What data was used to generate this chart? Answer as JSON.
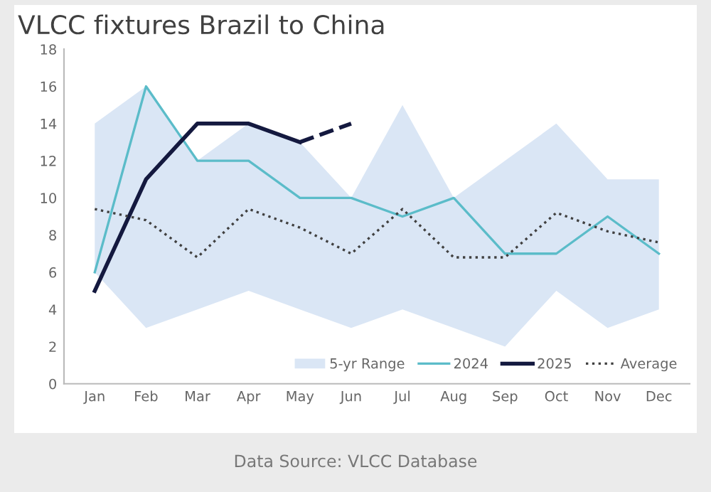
{
  "chart_data": {
    "type": "line",
    "title": "VLCC fixtures Brazil to China",
    "categories": [
      "Jan",
      "Feb",
      "Mar",
      "Apr",
      "May",
      "Jun",
      "Jul",
      "Aug",
      "Sep",
      "Oct",
      "Nov",
      "Dec"
    ],
    "series": [
      {
        "name": "5-yr Range",
        "color": "#dae6f5",
        "values": [
          null,
          null,
          null,
          null,
          null,
          null,
          null,
          null,
          null,
          null,
          null,
          null
        ],
        "lower": [
          6,
          3,
          4,
          5,
          4,
          3,
          4,
          3,
          2,
          5,
          3,
          4
        ],
        "upper": [
          14,
          16,
          12,
          14,
          13,
          10,
          15,
          10,
          12,
          14,
          11,
          11
        ]
      },
      {
        "name": "2024",
        "color": "#5bbcc9",
        "values": [
          6,
          16,
          12,
          12,
          10,
          10,
          9,
          10,
          7,
          7,
          9,
          7
        ]
      },
      {
        "name": "2025",
        "color": "#14193f",
        "values": [
          5,
          11,
          14,
          14,
          13,
          null,
          null,
          null,
          null,
          null,
          null,
          null
        ]
      },
      {
        "color": "#14193f",
        "line_style": "dashed",
        "values": [
          null,
          null,
          null,
          null,
          13,
          14,
          null,
          null,
          null,
          null,
          null,
          null
        ]
      },
      {
        "name": "Average",
        "color": "#404040",
        "line_style": "dotted",
        "values": [
          9.4,
          8.8,
          6.8,
          9.4,
          8.4,
          7.0,
          9.4,
          6.8,
          6.8,
          9.2,
          8.2,
          7.6
        ]
      }
    ],
    "ylim": [
      0,
      18
    ],
    "yticks": [
      0,
      2,
      4,
      6,
      8,
      10,
      12,
      14,
      16,
      18
    ],
    "grid": false,
    "legend": "bottom right",
    "annotations": [
      "Data Source: VLCC Database"
    ]
  }
}
